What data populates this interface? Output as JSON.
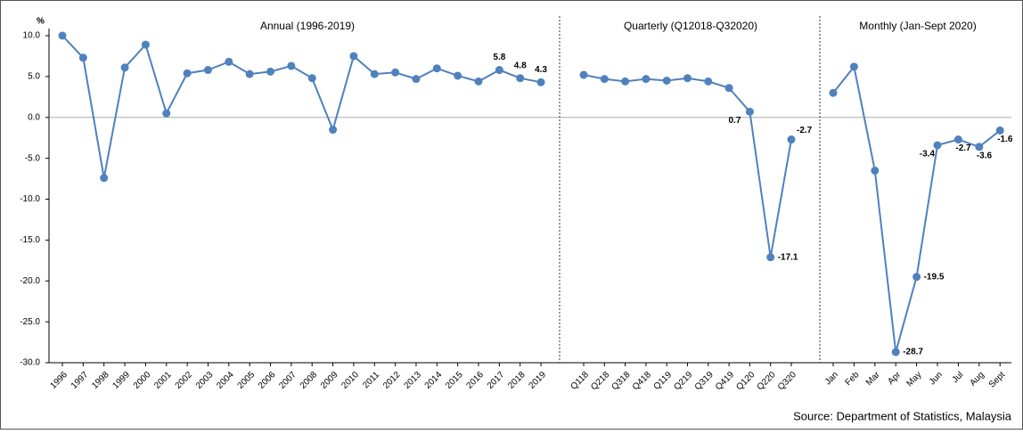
{
  "chart_data": [
    {
      "type": "line",
      "title": "Annual (1996-2019)",
      "y_label": "%",
      "color": "#4f81bd",
      "categories": [
        "1996",
        "1997",
        "1998",
        "1999",
        "2000",
        "2001",
        "2002",
        "2003",
        "2004",
        "2005",
        "2006",
        "2007",
        "2008",
        "2009",
        "2010",
        "2011",
        "2012",
        "2013",
        "2014",
        "2015",
        "2016",
        "2017",
        "2018",
        "2019"
      ],
      "values": [
        10.0,
        7.3,
        -7.4,
        6.1,
        8.9,
        0.5,
        5.4,
        5.8,
        6.8,
        5.3,
        5.6,
        6.3,
        4.8,
        -1.5,
        7.5,
        5.3,
        5.5,
        4.7,
        6.0,
        5.1,
        4.4,
        5.8,
        4.8,
        4.3
      ],
      "value_labels": [
        null,
        null,
        null,
        null,
        null,
        null,
        null,
        null,
        null,
        null,
        null,
        null,
        null,
        null,
        null,
        null,
        null,
        null,
        null,
        null,
        null,
        "5.8",
        "4.8",
        "4.3"
      ],
      "ylim": [
        -30,
        10
      ],
      "yticks": [
        {
          "value": -30,
          "label": "-30.0"
        },
        {
          "value": -25,
          "label": "-25.0"
        },
        {
          "value": -20,
          "label": "-20.0"
        },
        {
          "value": -15,
          "label": "-15.0"
        },
        {
          "value": -10,
          "label": "-10.0"
        },
        {
          "value": -5,
          "label": "-5.0"
        },
        {
          "value": 0,
          "label": "0.0"
        },
        {
          "value": 5,
          "label": "5.0"
        },
        {
          "value": 10,
          "label": "10.0"
        }
      ]
    },
    {
      "type": "line",
      "title": "Quarterly (Q12018-Q32020)",
      "color": "#4f81bd",
      "categories": [
        "Q118",
        "Q218",
        "Q318",
        "Q418",
        "Q119",
        "Q219",
        "Q319",
        "Q419",
        "Q120",
        "Q220",
        "Q320"
      ],
      "values": [
        5.2,
        4.7,
        4.4,
        4.7,
        4.5,
        4.8,
        4.4,
        3.6,
        0.7,
        -17.1,
        -2.7
      ],
      "value_labels": [
        null,
        null,
        null,
        null,
        null,
        null,
        null,
        null,
        "0.7",
        "-17.1",
        "-2.7"
      ],
      "ylim": [
        -30,
        10
      ]
    },
    {
      "type": "line",
      "title": "Monthly (Jan-Sept 2020)",
      "color": "#4f81bd",
      "categories": [
        "Jan",
        "Feb",
        "Mar",
        "Apr",
        "May",
        "Jun",
        "Jul",
        "Aug",
        "Sept"
      ],
      "values": [
        3.0,
        6.2,
        -6.5,
        -28.7,
        -19.5,
        -3.4,
        -2.7,
        -3.6,
        -1.6
      ],
      "value_labels": [
        null,
        null,
        null,
        "-28.7",
        "-19.5",
        "-3.4",
        "-2.7",
        "-3.6",
        "-1.6"
      ],
      "ylim": [
        -30,
        10
      ]
    }
  ],
  "source": "Source: Department of Statistics, Malaysia"
}
